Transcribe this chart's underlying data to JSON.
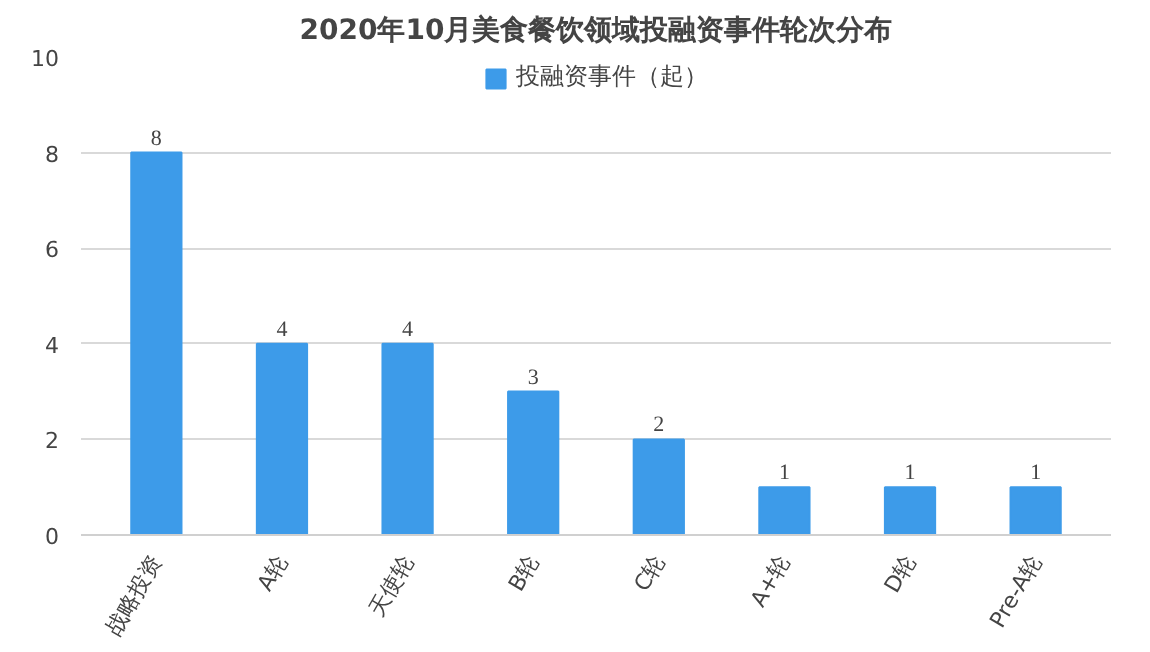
{
  "chart_data": {
    "type": "bar",
    "title": "2020年10月美食餐饮领域投融资事件轮次分布",
    "categories": [
      "战略投资",
      "A轮",
      "天使轮",
      "B轮",
      "C轮",
      "A+轮",
      "D轮",
      "Pre-A轮"
    ],
    "series": [
      {
        "name": "投融资事件（起）",
        "color": "#3d9be9",
        "values": [
          8,
          4,
          4,
          3,
          2,
          1,
          1,
          1
        ]
      }
    ],
    "ylim": [
      0,
      10
    ],
    "yticks": [
      0,
      2,
      4,
      6,
      8,
      10
    ],
    "grid": "y",
    "legend": "top",
    "data_labels": true
  }
}
